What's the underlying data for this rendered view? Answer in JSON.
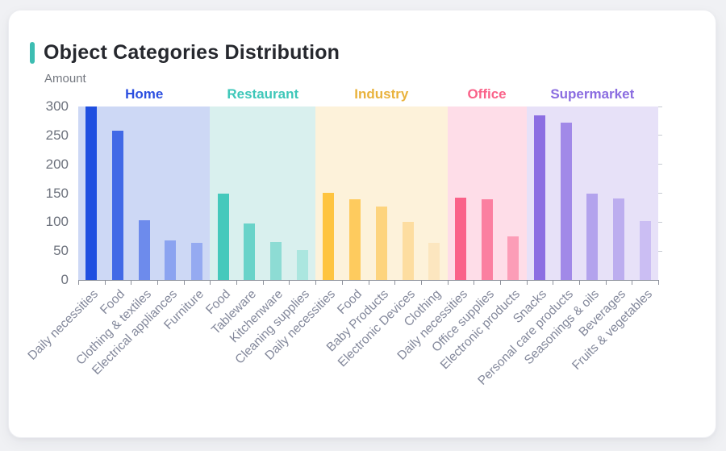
{
  "card": {
    "accent_color": "#3dbdb2"
  },
  "chart_data": {
    "type": "bar",
    "title": "Object Categories Distribution",
    "ylabel": "Amount",
    "xlabel": "",
    "ylim": [
      0,
      300
    ],
    "yticks": [
      0,
      50,
      100,
      150,
      200,
      250,
      300
    ],
    "grid": false,
    "legend_position": "group-labels-above-bands",
    "groups": [
      {
        "name": "Home",
        "label_color": "#2c4fe0",
        "band_color": "#cdd8f5",
        "bars": [
          {
            "category": "Daily necessities",
            "value": 300,
            "color": "#1f4fe0"
          },
          {
            "category": "Food",
            "value": 258,
            "color": "#4169e6"
          },
          {
            "category": "Clothing & textiles",
            "value": 103,
            "color": "#6d8bec"
          },
          {
            "category": "Electrical appliances",
            "value": 69,
            "color": "#8ba3f0"
          },
          {
            "category": "Furniture",
            "value": 64,
            "color": "#95aaf1"
          }
        ]
      },
      {
        "name": "Restaurant",
        "label_color": "#3ec7b9",
        "band_color": "#d9f0ee",
        "bars": [
          {
            "category": "Food",
            "value": 149,
            "color": "#45c9bc"
          },
          {
            "category": "Tableware",
            "value": 98,
            "color": "#69d3c9"
          },
          {
            "category": "Kitchenware",
            "value": 66,
            "color": "#8ddcd4"
          },
          {
            "category": "Cleaning supplies",
            "value": 51,
            "color": "#abe6df"
          }
        ]
      },
      {
        "name": "Industry",
        "label_color": "#e9b23c",
        "band_color": "#fdf2da",
        "bars": [
          {
            "category": "Daily necessities",
            "value": 151,
            "color": "#fec440"
          },
          {
            "category": "Food",
            "value": 139,
            "color": "#fecb5e"
          },
          {
            "category": "Baby Products",
            "value": 127,
            "color": "#fdd47e"
          },
          {
            "category": "Electronic Devices",
            "value": 100,
            "color": "#fddda0"
          },
          {
            "category": "Clothing",
            "value": 64,
            "color": "#fce6bf"
          }
        ]
      },
      {
        "name": "Office",
        "label_color": "#fa6289",
        "band_color": "#fedde8",
        "bars": [
          {
            "category": "Daily necessities",
            "value": 142,
            "color": "#fa6289"
          },
          {
            "category": "Office supplies",
            "value": 139,
            "color": "#fb7fa0"
          },
          {
            "category": "Electronic products",
            "value": 75,
            "color": "#fc9db7"
          }
        ]
      },
      {
        "name": "Supermarket",
        "label_color": "#8a6ce0",
        "band_color": "#e7e1f8",
        "bars": [
          {
            "category": "Snacks",
            "value": 285,
            "color": "#8c6ee2"
          },
          {
            "category": "Personal care products",
            "value": 272,
            "color": "#a189e8"
          },
          {
            "category": "Seasonings & oils",
            "value": 149,
            "color": "#b3a3ed"
          },
          {
            "category": "Beverages",
            "value": 141,
            "color": "#bcadef"
          },
          {
            "category": "Fruits & vegetables",
            "value": 102,
            "color": "#cbbef3"
          }
        ]
      }
    ]
  }
}
